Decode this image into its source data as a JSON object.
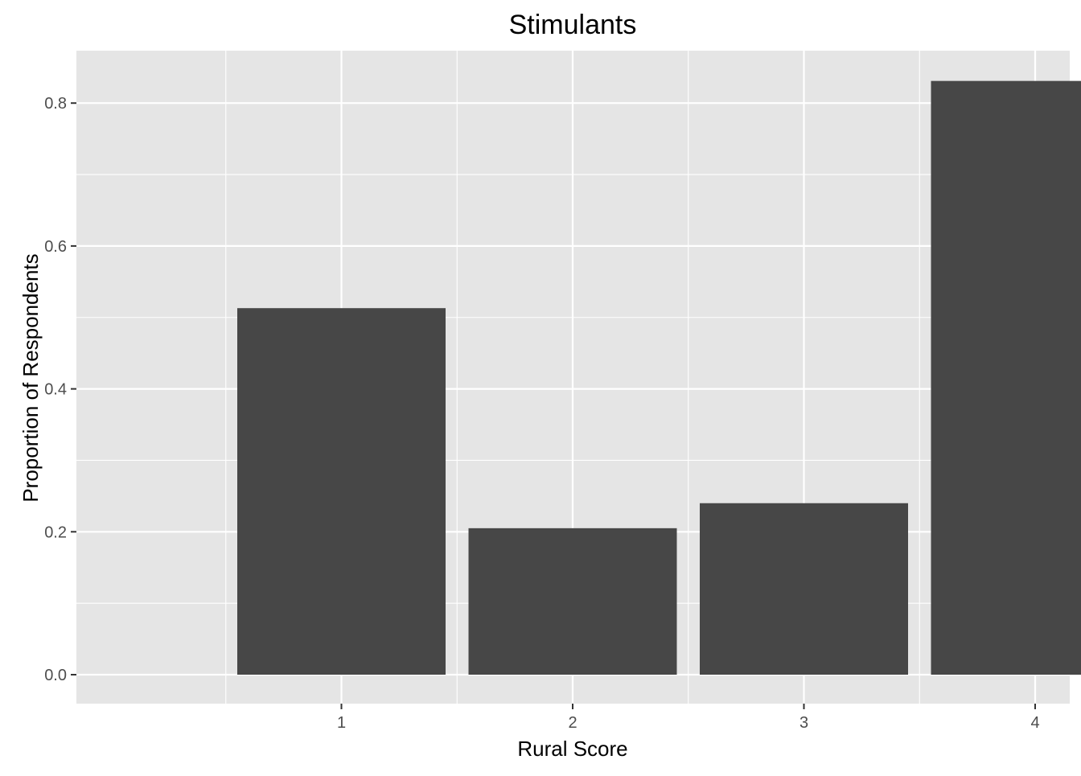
{
  "chart_data": {
    "type": "bar",
    "title": "Stimulants",
    "xlabel": "Rural Score",
    "ylabel": "Proportion of Respondents",
    "categories": [
      "1",
      "2",
      "3",
      "4"
    ],
    "values": [
      0.513,
      0.205,
      0.24,
      0.831
    ],
    "ylim": [
      -0.041,
      0.873
    ],
    "y_ticks": [
      "0.0",
      "0.2",
      "0.4",
      "0.6",
      "0.8"
    ],
    "grid": true,
    "legend": "none",
    "colors": {
      "bar": "#474747",
      "panel": "#e5e5e5",
      "grid": "#ffffff",
      "text": "#000000",
      "tick_text": "#4d4d4d",
      "tick_mark": "#333333"
    }
  }
}
